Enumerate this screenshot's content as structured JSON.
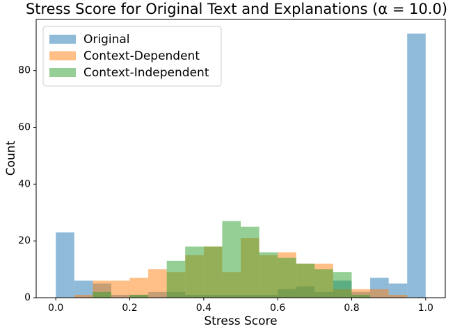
{
  "chart_data": {
    "type": "histogram",
    "title": "Stress Score for Original Text and Explanations (α = 10.0)",
    "x_label": "Stress Score",
    "y_label": "Count",
    "bins": [
      0,
      0.05,
      0.1,
      0.15,
      0.2,
      0.25,
      0.3,
      0.35,
      0.4,
      0.45,
      0.5,
      0.55,
      0.6,
      0.65,
      0.7,
      0.75,
      0.8,
      0.85,
      0.9,
      0.95,
      1.0
    ],
    "series": [
      {
        "name": "Original",
        "color": "#1f77b4",
        "values": [
          23,
          6,
          5,
          1,
          1,
          2,
          2,
          1,
          1,
          1,
          1,
          1,
          3,
          4,
          2,
          6,
          2,
          7,
          5,
          93
        ]
      },
      {
        "name": "Context-Dependent",
        "color": "#ff7f0e",
        "values": [
          0,
          1,
          6,
          6,
          7,
          10,
          9,
          15,
          18,
          9,
          21,
          15,
          16,
          12,
          12,
          3,
          3,
          3,
          1,
          0
        ]
      },
      {
        "name": "Context-Independent",
        "color": "#2ca02c",
        "values": [
          0,
          0,
          2,
          0,
          1,
          0,
          13,
          18,
          18,
          27,
          25,
          16,
          14,
          12,
          10,
          9,
          1,
          0,
          0,
          0
        ]
      }
    ],
    "opacity": 0.5,
    "xlim": [
      -0.053,
      1.053
    ],
    "ylim": [
      0,
      98
    ],
    "xticks": [
      {
        "value": 0,
        "label": "0.0"
      },
      {
        "value": 0.2,
        "label": "0.2"
      },
      {
        "value": 0.4,
        "label": "0.4"
      },
      {
        "value": 0.6,
        "label": "0.6"
      },
      {
        "value": 0.8,
        "label": "0.8"
      },
      {
        "value": 1.0,
        "label": "1.0"
      }
    ],
    "yticks": [
      0,
      20,
      40,
      60,
      80
    ],
    "legend": "upper-left"
  }
}
